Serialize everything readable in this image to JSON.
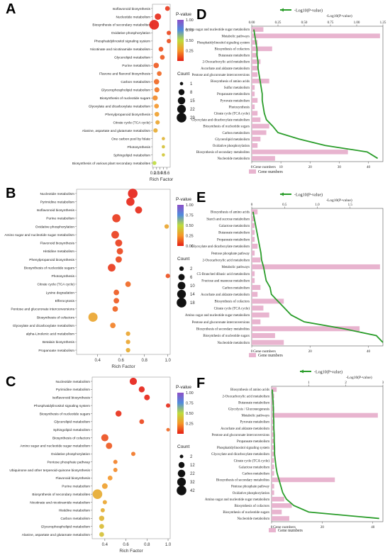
{
  "panels": [
    {
      "letter": "A",
      "xlabel": "Rich Factor",
      "legend_title": "P-value",
      "legend_ticks": [
        "1.00",
        "0.75",
        "0.50",
        "0.25"
      ],
      "count_title": "Count",
      "count_labels": [
        "1",
        "8",
        "15",
        "22",
        "29"
      ]
    },
    {
      "letter": "B",
      "xlabel": "Rich Factor",
      "legend_title": "P-value",
      "legend_ticks": [
        "1.00",
        "0.75",
        "0.50",
        "0.25",
        "0.00"
      ],
      "count_title": "Count",
      "count_labels": [
        "2",
        "6",
        "10",
        "14",
        "18"
      ]
    },
    {
      "letter": "C",
      "xlabel": "Rich Factor",
      "legend_title": "P-value",
      "legend_ticks": [
        "1.00",
        "0.75",
        "0.50",
        "0.25"
      ],
      "count_title": "Count",
      "count_labels": [
        "2",
        "12",
        "22",
        "32",
        "42"
      ]
    },
    {
      "letter": "D",
      "line_legend": "-Log10(P-value)",
      "top_axis_label": "-Log10(P-value)",
      "bottom_axis_label": "Gene numbers",
      "bar_legend": "Gene numbers"
    },
    {
      "letter": "E",
      "line_legend": "-Log10(P-value)",
      "top_axis_label": "-Log10(P-value)",
      "bottom_axis_label": "Gene numbers",
      "bar_legend": "Gene numbers"
    },
    {
      "letter": "F",
      "line_legend": "-Log10(P-value)",
      "top_axis_label": "-Log10(P-value)",
      "bottom_axis_label": "Gene numbers",
      "bar_legend": "Gene numbers"
    }
  ],
  "chart_data": [
    {
      "type": "scatter",
      "panel": "A",
      "xlabel": "Rich Factor",
      "xlim": [
        0.18,
        0.7
      ],
      "xticks": [
        "0.2",
        "0.3",
        "0.4",
        "0.5",
        "0.6"
      ],
      "colorbar": "P-value",
      "clim": [
        0,
        1
      ],
      "points": [
        {
          "term": "Isoflavonoid biosynthesis",
          "x": 0.62,
          "count": 4,
          "p": 0.05
        },
        {
          "term": "Nucleotide metabolism",
          "x": 0.34,
          "count": 10,
          "p": 0.02
        },
        {
          "term": "Biosynthesis of secondary metabolites",
          "x": 0.23,
          "count": 29,
          "p": 0.001
        },
        {
          "term": "Oxidative phosphorylation",
          "x": 0.66,
          "count": 3,
          "p": 0.08
        },
        {
          "term": "Phosphatidylinositol signaling system",
          "x": 0.66,
          "count": 3,
          "p": 0.1
        },
        {
          "term": "Nicotinate and nicotinamide metabolism",
          "x": 0.43,
          "count": 4,
          "p": 0.1
        },
        {
          "term": "Glycerolipid metabolism",
          "x": 0.47,
          "count": 4,
          "p": 0.12
        },
        {
          "term": "Purine metabolism",
          "x": 0.29,
          "count": 6,
          "p": 0.12
        },
        {
          "term": "Flavone and flavonol biosynthesis",
          "x": 0.38,
          "count": 4,
          "p": 0.15
        },
        {
          "term": "Carbon metabolism",
          "x": 0.3,
          "count": 6,
          "p": 0.15
        },
        {
          "term": "Glycerophospholipid metabolism",
          "x": 0.31,
          "count": 5,
          "p": 0.18
        },
        {
          "term": "Biosynthesis of nucleotide sugars",
          "x": 0.26,
          "count": 5,
          "p": 0.22
        },
        {
          "term": "Glyoxylate and dicarboxylate metabolism",
          "x": 0.3,
          "count": 4,
          "p": 0.25
        },
        {
          "term": "Phenylpropanoid biosynthesis",
          "x": 0.31,
          "count": 4,
          "p": 0.28
        },
        {
          "term": "Citrate cycle (TCA cycle)",
          "x": 0.33,
          "count": 3,
          "p": 0.3
        },
        {
          "term": "Alanine, aspartate and glutamate metabolism",
          "x": 0.27,
          "count": 3,
          "p": 0.32
        },
        {
          "term": "One carbon pool by folate",
          "x": 0.5,
          "count": 1,
          "p": 0.35
        },
        {
          "term": "Photosynthesis",
          "x": 0.5,
          "count": 1,
          "p": 0.4
        },
        {
          "term": "Sphingolipid metabolism",
          "x": 0.5,
          "count": 1,
          "p": 0.42
        },
        {
          "term": "Biosynthesis of various plant secondary metabolites",
          "x": 0.24,
          "count": 2,
          "p": 0.5
        }
      ]
    },
    {
      "type": "scatter",
      "panel": "B",
      "xlabel": "Rich Factor",
      "xlim": [
        0.22,
        1.02
      ],
      "xticks": [
        "0.4",
        "0.6",
        "0.8",
        "1.0"
      ],
      "colorbar": "P-value",
      "clim": [
        0,
        1
      ],
      "points": [
        {
          "term": "Nucleotide metabolism",
          "x": 0.7,
          "count": 18,
          "p": 0.001
        },
        {
          "term": "Pyrimidine metabolism",
          "x": 0.68,
          "count": 12,
          "p": 0.01
        },
        {
          "term": "Isoflavonoid biosynthesis",
          "x": 0.75,
          "count": 8,
          "p": 0.02
        },
        {
          "term": "Purine metabolism",
          "x": 0.56,
          "count": 12,
          "p": 0.05
        },
        {
          "term": "Oxidative phosphorylation",
          "x": 0.99,
          "count": 2,
          "p": 0.3
        },
        {
          "term": "Amino sugar and nucleotide sugar metabolism",
          "x": 0.55,
          "count": 10,
          "p": 0.06
        },
        {
          "term": "Flavonoid biosynthesis",
          "x": 0.58,
          "count": 8,
          "p": 0.06
        },
        {
          "term": "Histidine metabolism",
          "x": 0.59,
          "count": 6,
          "p": 0.08
        },
        {
          "term": "Phenylpropanoid biosynthesis",
          "x": 0.58,
          "count": 6,
          "p": 0.08
        },
        {
          "term": "Biosynthesis of nucleotide sugars",
          "x": 0.52,
          "count": 10,
          "p": 0.05
        },
        {
          "term": "Photosynthesis",
          "x": 1.0,
          "count": 2,
          "p": 0.1
        },
        {
          "term": "Citrate cycle (TCA cycle)",
          "x": 0.66,
          "count": 4,
          "p": 0.15
        },
        {
          "term": "Lysine degradation",
          "x": 0.56,
          "count": 4,
          "p": 0.12
        },
        {
          "term": "Efferocytosis",
          "x": 0.56,
          "count": 4,
          "p": 0.12
        },
        {
          "term": "Pentose and glucuronate interconversions",
          "x": 0.55,
          "count": 4,
          "p": 0.14
        },
        {
          "term": "Biosynthesis of cofactors",
          "x": 0.36,
          "count": 16,
          "p": 0.3
        },
        {
          "term": "Glyoxylate and dicarboxylate metabolism",
          "x": 0.53,
          "count": 4,
          "p": 0.2
        },
        {
          "term": "alpha-Linolenic acid metabolism",
          "x": 0.66,
          "count": 2,
          "p": 0.3
        },
        {
          "term": "Betalain biosynthesis",
          "x": 0.66,
          "count": 2,
          "p": 0.3
        },
        {
          "term": "Propanoate metabolism",
          "x": 0.66,
          "count": 2,
          "p": 0.32
        }
      ]
    },
    {
      "type": "scatter",
      "panel": "C",
      "xlabel": "Rich Factor",
      "xlim": [
        0.28,
        1.02
      ],
      "xticks": [
        "0.4",
        "0.6",
        "0.8",
        "1.0"
      ],
      "colorbar": "P-value",
      "clim": [
        0,
        1
      ],
      "points": [
        {
          "term": "Nucleotide metabolism",
          "x": 0.67,
          "count": 20,
          "p": 0.001
        },
        {
          "term": "Pyrimidine metabolism",
          "x": 0.75,
          "count": 12,
          "p": 0.005
        },
        {
          "term": "Isoflavonoid biosynthesis",
          "x": 0.8,
          "count": 10,
          "p": 0.01
        },
        {
          "term": "Phosphatidylinositol signaling system",
          "x": 1.0,
          "count": 4,
          "p": 0.02
        },
        {
          "term": "Biosynthesis of nucleotide sugars",
          "x": 0.53,
          "count": 12,
          "p": 0.03
        },
        {
          "term": "Glycerolipid metabolism",
          "x": 0.75,
          "count": 6,
          "p": 0.08
        },
        {
          "term": "Sphingolipid metabolism",
          "x": 1.0,
          "count": 2,
          "p": 0.15
        },
        {
          "term": "Biosynthesis of cofactors",
          "x": 0.4,
          "count": 20,
          "p": 0.1
        },
        {
          "term": "Amino sugar and nucleotide sugar metabolism",
          "x": 0.44,
          "count": 14,
          "p": 0.12
        },
        {
          "term": "Oxidative phosphorylation",
          "x": 0.67,
          "count": 4,
          "p": 0.18
        },
        {
          "term": "Pentose phosphate pathway",
          "x": 0.5,
          "count": 4,
          "p": 0.2
        },
        {
          "term": "Ubiquinone and other terpenoid-quinone biosynthesis",
          "x": 0.5,
          "count": 4,
          "p": 0.22
        },
        {
          "term": "Flavonoid biosynthesis",
          "x": 0.45,
          "count": 6,
          "p": 0.25
        },
        {
          "term": "Purine metabolism",
          "x": 0.4,
          "count": 10,
          "p": 0.28
        },
        {
          "term": "Biosynthesis of secondary metabolites",
          "x": 0.33,
          "count": 42,
          "p": 0.32
        },
        {
          "term": "Nicotinate and nicotinamide metabolism",
          "x": 0.4,
          "count": 4,
          "p": 0.3
        },
        {
          "term": "Histidine metabolism",
          "x": 0.38,
          "count": 4,
          "p": 0.33
        },
        {
          "term": "Carbon metabolism",
          "x": 0.37,
          "count": 8,
          "p": 0.35
        },
        {
          "term": "Glycerophospholipid metabolism",
          "x": 0.37,
          "count": 6,
          "p": 0.38
        },
        {
          "term": "Alanine, aspartate and glutamate metabolism",
          "x": 0.37,
          "count": 6,
          "p": 0.4
        }
      ]
    },
    {
      "type": "bar",
      "panel": "D",
      "xlabel": "Gene numbers",
      "xlim": [
        0,
        45
      ],
      "xticks": [
        "0",
        "10",
        "20",
        "30",
        "40"
      ],
      "top_axis": "-Log10(P-value)",
      "top_lim": [
        0,
        1.25
      ],
      "top_ticks": [
        "0.00",
        "0.25",
        "0.50",
        "0.75",
        "1.00",
        "1.25"
      ],
      "categories": [
        "Amino sugar and nucleotide sugar metabolism",
        "Metabolic pathways",
        "Phosphatidylinositol signaling system",
        "Biosynthesis of cofactors",
        "Butanoate metabolism",
        "2-Oxocarboxylic acid metabolism",
        "Ascorbate and aldarate metabolism",
        "Pentose and glucuronate interconversions",
        "Biosynthesis of amino acids",
        "Sulfur metabolism",
        "Propanoate metabolism",
        "Pyruvate metabolism",
        "Photosynthesis",
        "Citrate cycle (TCA cycle)",
        "Glyoxylate and dicarboxylate metabolism",
        "Biosynthesis of nucleotide sugars",
        "Carbon metabolism",
        "Glycerolipid metabolism",
        "Oxidative phosphorylation",
        "Biosynthesis of secondary metabolites",
        "Nucleotide metabolism"
      ],
      "series": [
        {
          "name": "Gene numbers",
          "values": [
            4,
            44,
            2,
            7,
            2,
            3,
            2,
            2,
            6,
            1,
            1,
            2,
            1,
            2,
            3,
            6,
            5,
            3,
            2,
            33,
            8
          ]
        },
        {
          "name": "-Log10(P-value)",
          "values": [
            0.02,
            0.03,
            0.04,
            0.05,
            0.05,
            0.06,
            0.06,
            0.07,
            0.08,
            0.09,
            0.1,
            0.1,
            0.11,
            0.12,
            0.14,
            0.2,
            0.25,
            0.45,
            0.7,
            1.1,
            1.2
          ]
        }
      ]
    },
    {
      "type": "bar",
      "panel": "E",
      "xlabel": "Gene numbers",
      "xlim": [
        0,
        45
      ],
      "xticks": [
        "0",
        "20",
        "40"
      ],
      "top_axis": "-Log10(P-value)",
      "top_lim": [
        0,
        2.0
      ],
      "top_ticks": [
        "0",
        "0.5",
        "1.0",
        "1.5"
      ],
      "categories": [
        "Biosynthesis of amino acids",
        "Starch and sucrose metabolism",
        "Galactose metabolism",
        "Butanoate metabolism",
        "Propanoate metabolism",
        "Glyoxylate and dicarboxylate metabolism",
        "Pentose phosphate pathway",
        "2-Oxocarboxylic acid metabolism",
        "Metabolic pathways",
        "C5-Branched dibasic acid metabolism",
        "Fructose and mannose metabolism",
        "Carbon metabolism",
        "Ascorbate and aldarate metabolism",
        "Biosynthesis of cofactors",
        "Citrate cycle (TCA cycle)",
        "Amino sugar and nucleotide sugar metabolism",
        "Pentose and glucuronate interconversions",
        "Biosynthesis of secondary metabolites",
        "Biosynthesis of nucleotide sugars",
        "Nucleotide metabolism"
      ],
      "series": [
        {
          "name": "Gene numbers",
          "values": [
            2,
            1,
            1,
            1,
            1,
            2,
            1,
            3,
            44,
            1,
            1,
            3,
            2,
            11,
            4,
            6,
            3,
            37,
            8,
            11
          ]
        },
        {
          "name": "-Log10(P-value)",
          "values": [
            0.02,
            0.04,
            0.06,
            0.08,
            0.1,
            0.12,
            0.14,
            0.15,
            0.18,
            0.2,
            0.22,
            0.28,
            0.3,
            0.4,
            0.5,
            0.6,
            0.8,
            1.4,
            1.9,
            2.0
          ]
        }
      ]
    },
    {
      "type": "bar",
      "panel": "F",
      "xlabel": "Gene numbers",
      "xlim": [
        0,
        44
      ],
      "xticks": [
        "0",
        "20",
        "40"
      ],
      "top_axis": "-Log10(P-value)",
      "top_lim": [
        0,
        3.0
      ],
      "top_ticks": [
        "1",
        "2",
        "3"
      ],
      "categories": [
        "Biosynthesis of amino acids",
        "2-Oxocarboxylic acid metabolism",
        "Butanoate metabolism",
        "Glycolysis / Gluconeogenesis",
        "Metabolic pathways",
        "Pyruvate metabolism",
        "Ascorbate and aldarate metabolism",
        "Pentose and glucuronate interconversions",
        "Propanoate metabolism",
        "Phosphatidylinositol signaling system",
        "Glyoxylate and dicarboxylate metabolism",
        "Citrate cycle (TCA cycle)",
        "Galactose metabolism",
        "Carbon metabolism",
        "Biosynthesis of secondary metabolites",
        "Pentose phosphate pathway",
        "Oxidative phosphorylation",
        "Amino sugar and nucleotide sugar metabolism",
        "Biosynthesis of cofactors",
        "Biosynthesis of nucleotide sugars",
        "Nucleotide metabolism"
      ],
      "series": [
        {
          "name": "Gene numbers",
          "values": [
            2,
            1,
            1,
            1,
            42,
            1,
            1,
            1,
            1,
            1,
            1,
            1,
            1,
            1,
            25,
            1,
            1,
            5,
            8,
            4,
            7
          ]
        },
        {
          "name": "-Log10(P-value)",
          "values": [
            0.02,
            0.03,
            0.04,
            0.05,
            0.05,
            0.06,
            0.06,
            0.07,
            0.07,
            0.08,
            0.08,
            0.1,
            0.12,
            0.15,
            0.2,
            0.25,
            0.3,
            0.4,
            0.6,
            1.0,
            2.9
          ]
        }
      ]
    }
  ]
}
